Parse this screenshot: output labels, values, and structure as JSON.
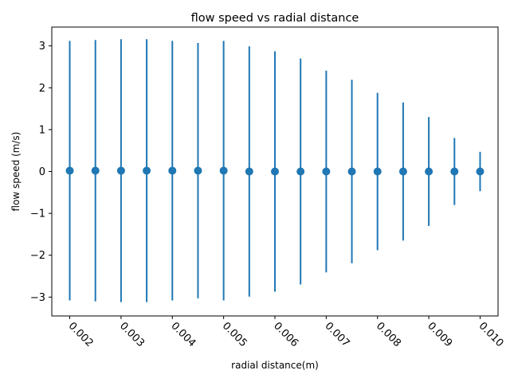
{
  "chart_data": {
    "type": "scatter",
    "title": "flow speed vs radial distance",
    "xlabel": "radial distance(m)",
    "ylabel": "flow speed (m/s)",
    "xlim": [
      0.00165,
      0.01035
    ],
    "ylim": [
      -3.45,
      3.45
    ],
    "xticks": [
      0.002,
      0.003,
      0.004,
      0.005,
      0.006,
      0.007,
      0.008,
      0.009,
      0.01
    ],
    "xtick_labels": [
      "0.002",
      "0.003",
      "0.004",
      "0.005",
      "0.006",
      "0.007",
      "0.008",
      "0.009",
      "0.010"
    ],
    "yticks": [
      -3,
      -2,
      -1,
      0,
      1,
      2,
      3
    ],
    "ytick_labels": [
      "−3",
      "−2",
      "−1",
      "0",
      "1",
      "2",
      "3"
    ],
    "xtick_rotation_deg": -45,
    "grid": false,
    "legend": "none",
    "color": "#1f77b4",
    "series": [
      {
        "x": [
          0.002,
          0.0025,
          0.003,
          0.0035,
          0.004,
          0.0045,
          0.005,
          0.0055,
          0.006,
          0.0065,
          0.007,
          0.0075,
          0.008,
          0.0085,
          0.009,
          0.0095,
          0.01
        ],
        "y": [
          0.02,
          0.02,
          0.02,
          0.02,
          0.02,
          0.02,
          0.02,
          0.0,
          0.0,
          0.0,
          0.0,
          0.0,
          0.0,
          0.0,
          0.0,
          0.0,
          0.0
        ],
        "yerr": [
          3.1,
          3.12,
          3.14,
          3.14,
          3.1,
          3.05,
          3.1,
          2.99,
          2.87,
          2.7,
          2.41,
          2.19,
          1.88,
          1.65,
          1.3,
          0.8,
          0.47
        ]
      }
    ]
  }
}
